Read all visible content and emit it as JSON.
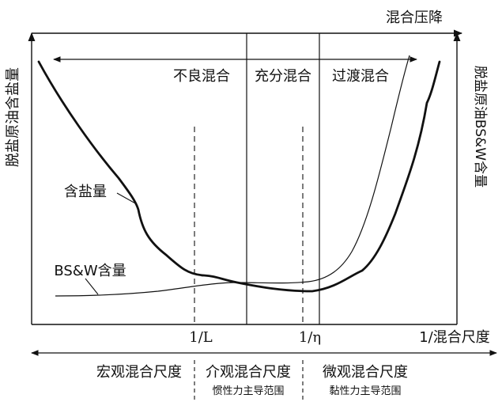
{
  "top_axis_label": "混合压降",
  "left_axis_label": "脱盐原油含盐量",
  "right_axis_label": "脱盐原油BS&W含量",
  "x_axis_label": "1/混合尺度",
  "regions_top": [
    "不良混合",
    "充分混合",
    "过渡混合"
  ],
  "tick_labels": {
    "L": "1/L",
    "eta": "1/η"
  },
  "curve_labels": {
    "salt": "含盐量",
    "bsw": "BS&W含量"
  },
  "scales": [
    {
      "label": "宏观混合尺度",
      "sub": ""
    },
    {
      "label": "介观混合尺度",
      "sub": "惯性力主导范围"
    },
    {
      "label": "微观混合尺度",
      "sub": "黏性力主导范围"
    }
  ],
  "colors": {
    "ink": "#111111"
  }
}
